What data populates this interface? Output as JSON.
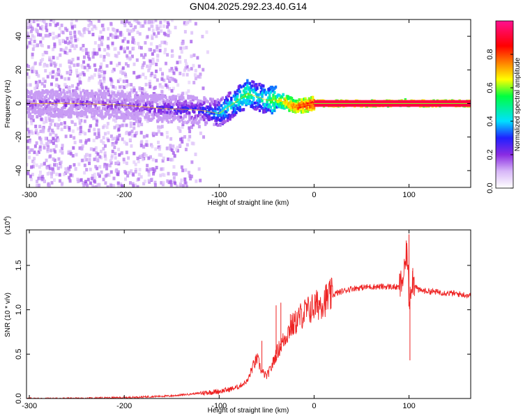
{
  "title": "GN04.2025.292.23.40.G14",
  "chart_data": [
    {
      "type": "heatmap",
      "title": "GN04.2025.292.23.40.G14",
      "xlabel": "Height of straight line (km)",
      "ylabel": "Frequency (Hz)",
      "xlim": [
        -303,
        165
      ],
      "ylim": [
        -50,
        50
      ],
      "xticks": [
        -300,
        -200,
        -100,
        0,
        100
      ],
      "yticks": [
        -40,
        -20,
        0,
        20,
        40
      ],
      "colorbar": {
        "label": "Normalized spectral amplitude",
        "range": [
          0,
          1
        ],
        "ticks": [
          "0.0",
          "0.2",
          "0.4",
          "0.6",
          "0.8"
        ],
        "colors": [
          "#ffffff",
          "#d8b8f8",
          "#8a2be2",
          "#2020ff",
          "#00e0ff",
          "#00ff40",
          "#ffff00",
          "#ff8000",
          "#ff0000",
          "#ff1090"
        ]
      },
      "ridge": {
        "x": [
          -300,
          -250,
          -200,
          -160,
          -120,
          -100,
          -80,
          -70,
          -60,
          -50,
          -40,
          -30,
          -20,
          -10,
          0,
          50,
          90,
          95,
          100,
          165
        ],
        "frequency": [
          0,
          0,
          -1,
          -3,
          -4,
          -6,
          2,
          6,
          4,
          2,
          2,
          1,
          -2,
          -1,
          0,
          0,
          0,
          1,
          0,
          0
        ],
        "amplitude": [
          0.25,
          0.25,
          0.25,
          0.3,
          0.35,
          0.45,
          0.55,
          0.6,
          0.5,
          0.55,
          0.65,
          0.8,
          0.85,
          0.9,
          0.92,
          0.92,
          0.9,
          0.75,
          0.92,
          0.92
        ]
      }
    },
    {
      "type": "line",
      "xlabel": "Height of straight line (km)",
      "ylabel": "SNR (10 * v/v)",
      "yscale_note": "(x10",
      "yscale_exp": "4",
      "yscale_close": ")",
      "xlim": [
        -303,
        165
      ],
      "ylim": [
        0,
        1.9
      ],
      "xticks": [
        -300,
        -200,
        -100,
        0,
        100
      ],
      "yticks": [
        "0.0",
        "0.5",
        "1.0",
        "1.5"
      ],
      "color": "#ee2222",
      "series": [
        {
          "name": "SNR",
          "x": [
            -303,
            -250,
            -200,
            -150,
            -130,
            -110,
            -100,
            -90,
            -80,
            -70,
            -65,
            -60,
            -55,
            -50,
            -45,
            -40,
            -35,
            -30,
            -25,
            -20,
            -15,
            -10,
            -5,
            0,
            10,
            20,
            30,
            40,
            50,
            60,
            70,
            80,
            90,
            95,
            98,
            100,
            103,
            110,
            130,
            150,
            165
          ],
          "values": [
            0.0,
            0.0,
            0.01,
            0.03,
            0.05,
            0.07,
            0.08,
            0.1,
            0.13,
            0.2,
            0.35,
            0.45,
            0.3,
            0.25,
            0.35,
            0.5,
            0.6,
            0.7,
            0.8,
            0.85,
            0.92,
            0.97,
            1.0,
            1.03,
            1.1,
            1.17,
            1.21,
            1.24,
            1.25,
            1.26,
            1.26,
            1.26,
            1.25,
            1.4,
            1.7,
            1.1,
            1.35,
            1.22,
            1.2,
            1.18,
            1.16
          ]
        }
      ],
      "features": {
        "spikes": [
          [
            -55,
            0.65
          ],
          [
            -40,
            1.05
          ],
          [
            -35,
            1.08
          ],
          [
            -25,
            0.95
          ],
          [
            96,
            1.55
          ],
          [
            100,
            1.85
          ],
          [
            101,
            0.43
          ],
          [
            104,
            1.47
          ]
        ]
      }
    }
  ]
}
